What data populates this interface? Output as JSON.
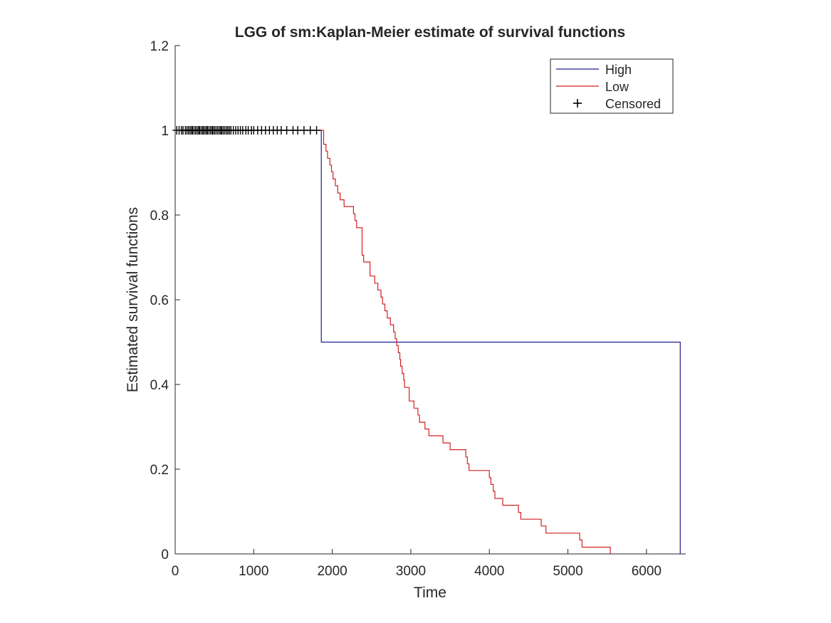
{
  "chart_data": {
    "type": "line",
    "step": true,
    "title": "LGG of sm:Kaplan-Meier estimate of survival functions",
    "xlabel": "Time",
    "ylabel": "Estimated survival functions",
    "xlim": [
      0,
      6500
    ],
    "ylim": [
      0,
      1.2
    ],
    "xticks": [
      0,
      1000,
      2000,
      3000,
      4000,
      5000,
      6000
    ],
    "yticks": [
      0,
      0.2,
      0.4,
      0.6,
      0.8,
      1,
      1.2
    ],
    "xtick_labels": [
      "0",
      "1000",
      "2000",
      "3000",
      "4000",
      "5000",
      "6000"
    ],
    "ytick_labels": [
      "0",
      "0.2",
      "0.4",
      "0.6",
      "0.8",
      "1",
      "1.2"
    ],
    "legend_position": "top-right",
    "grid": false,
    "series": [
      {
        "name": "High",
        "color": "#1f1f8f",
        "x": [
          0,
          1860,
          1860,
          6430,
          6430
        ],
        "y": [
          1,
          1,
          0.5,
          0.5,
          0
        ]
      },
      {
        "name": "Low",
        "color": "#d42020",
        "x": [
          0,
          1840,
          1890,
          1920,
          1940,
          1970,
          1990,
          2010,
          2040,
          2070,
          2100,
          2150,
          2220,
          2270,
          2290,
          2310,
          2380,
          2400,
          2430,
          2480,
          2540,
          2580,
          2600,
          2620,
          2640,
          2670,
          2700,
          2740,
          2780,
          2800,
          2820,
          2840,
          2860,
          2870,
          2890,
          2910,
          2920,
          2980,
          3040,
          3090,
          3110,
          3140,
          3160,
          3180,
          3230,
          3380,
          3410,
          3470,
          3500,
          3550,
          3640,
          3700,
          3720,
          3740,
          3760,
          3800,
          4000,
          4020,
          4050,
          4070,
          4100,
          4140,
          4170,
          4250,
          4300,
          4370,
          4400,
          4440,
          4600,
          4660,
          4720,
          4760,
          4880,
          5040,
          5150,
          5180,
          5240,
          5280,
          5480,
          5540
        ],
        "y": [
          1,
          1,
          0.967,
          0.951,
          0.934,
          0.918,
          0.902,
          0.885,
          0.869,
          0.852,
          0.836,
          0.82,
          0.82,
          0.803,
          0.787,
          0.77,
          0.705,
          0.689,
          0.689,
          0.656,
          0.639,
          0.623,
          0.623,
          0.606,
          0.59,
          0.574,
          0.557,
          0.541,
          0.524,
          0.508,
          0.492,
          0.475,
          0.459,
          0.443,
          0.426,
          0.41,
          0.393,
          0.361,
          0.344,
          0.328,
          0.311,
          0.311,
          0.311,
          0.295,
          0.279,
          0.279,
          0.262,
          0.262,
          0.246,
          0.246,
          0.246,
          0.229,
          0.213,
          0.197,
          0.197,
          0.197,
          0.18,
          0.164,
          0.148,
          0.131,
          0.131,
          0.131,
          0.115,
          0.115,
          0.115,
          0.098,
          0.082,
          0.082,
          0.082,
          0.066,
          0.049,
          0.049,
          0.049,
          0.049,
          0.033,
          0.016,
          0.016,
          0.016,
          0.016,
          0
        ]
      }
    ],
    "censored": {
      "name": "Censored",
      "color": "#000000",
      "x": [
        20,
        50,
        80,
        100,
        130,
        150,
        170,
        190,
        210,
        220,
        240,
        260,
        280,
        300,
        310,
        330,
        350,
        360,
        380,
        400,
        410,
        430,
        450,
        470,
        480,
        500,
        520,
        540,
        560,
        580,
        590,
        610,
        630,
        650,
        670,
        690,
        710,
        740,
        770,
        800,
        830,
        860,
        900,
        930,
        970,
        1000,
        1050,
        1100,
        1150,
        1200,
        1250,
        1300,
        1350,
        1420,
        1500,
        1560,
        1640,
        1720,
        1800
      ],
      "y": [
        1,
        1,
        1,
        1,
        1,
        1,
        1,
        1,
        1,
        1,
        1,
        1,
        1,
        1,
        1,
        1,
        1,
        1,
        1,
        1,
        1,
        1,
        1,
        1,
        1,
        1,
        1,
        1,
        1,
        1,
        1,
        1,
        1,
        1,
        1,
        1,
        1,
        1,
        1,
        1,
        1,
        1,
        1,
        1,
        1,
        1,
        1,
        1,
        1,
        1,
        1,
        1,
        1,
        1,
        1,
        1,
        1,
        1,
        1
      ]
    }
  }
}
